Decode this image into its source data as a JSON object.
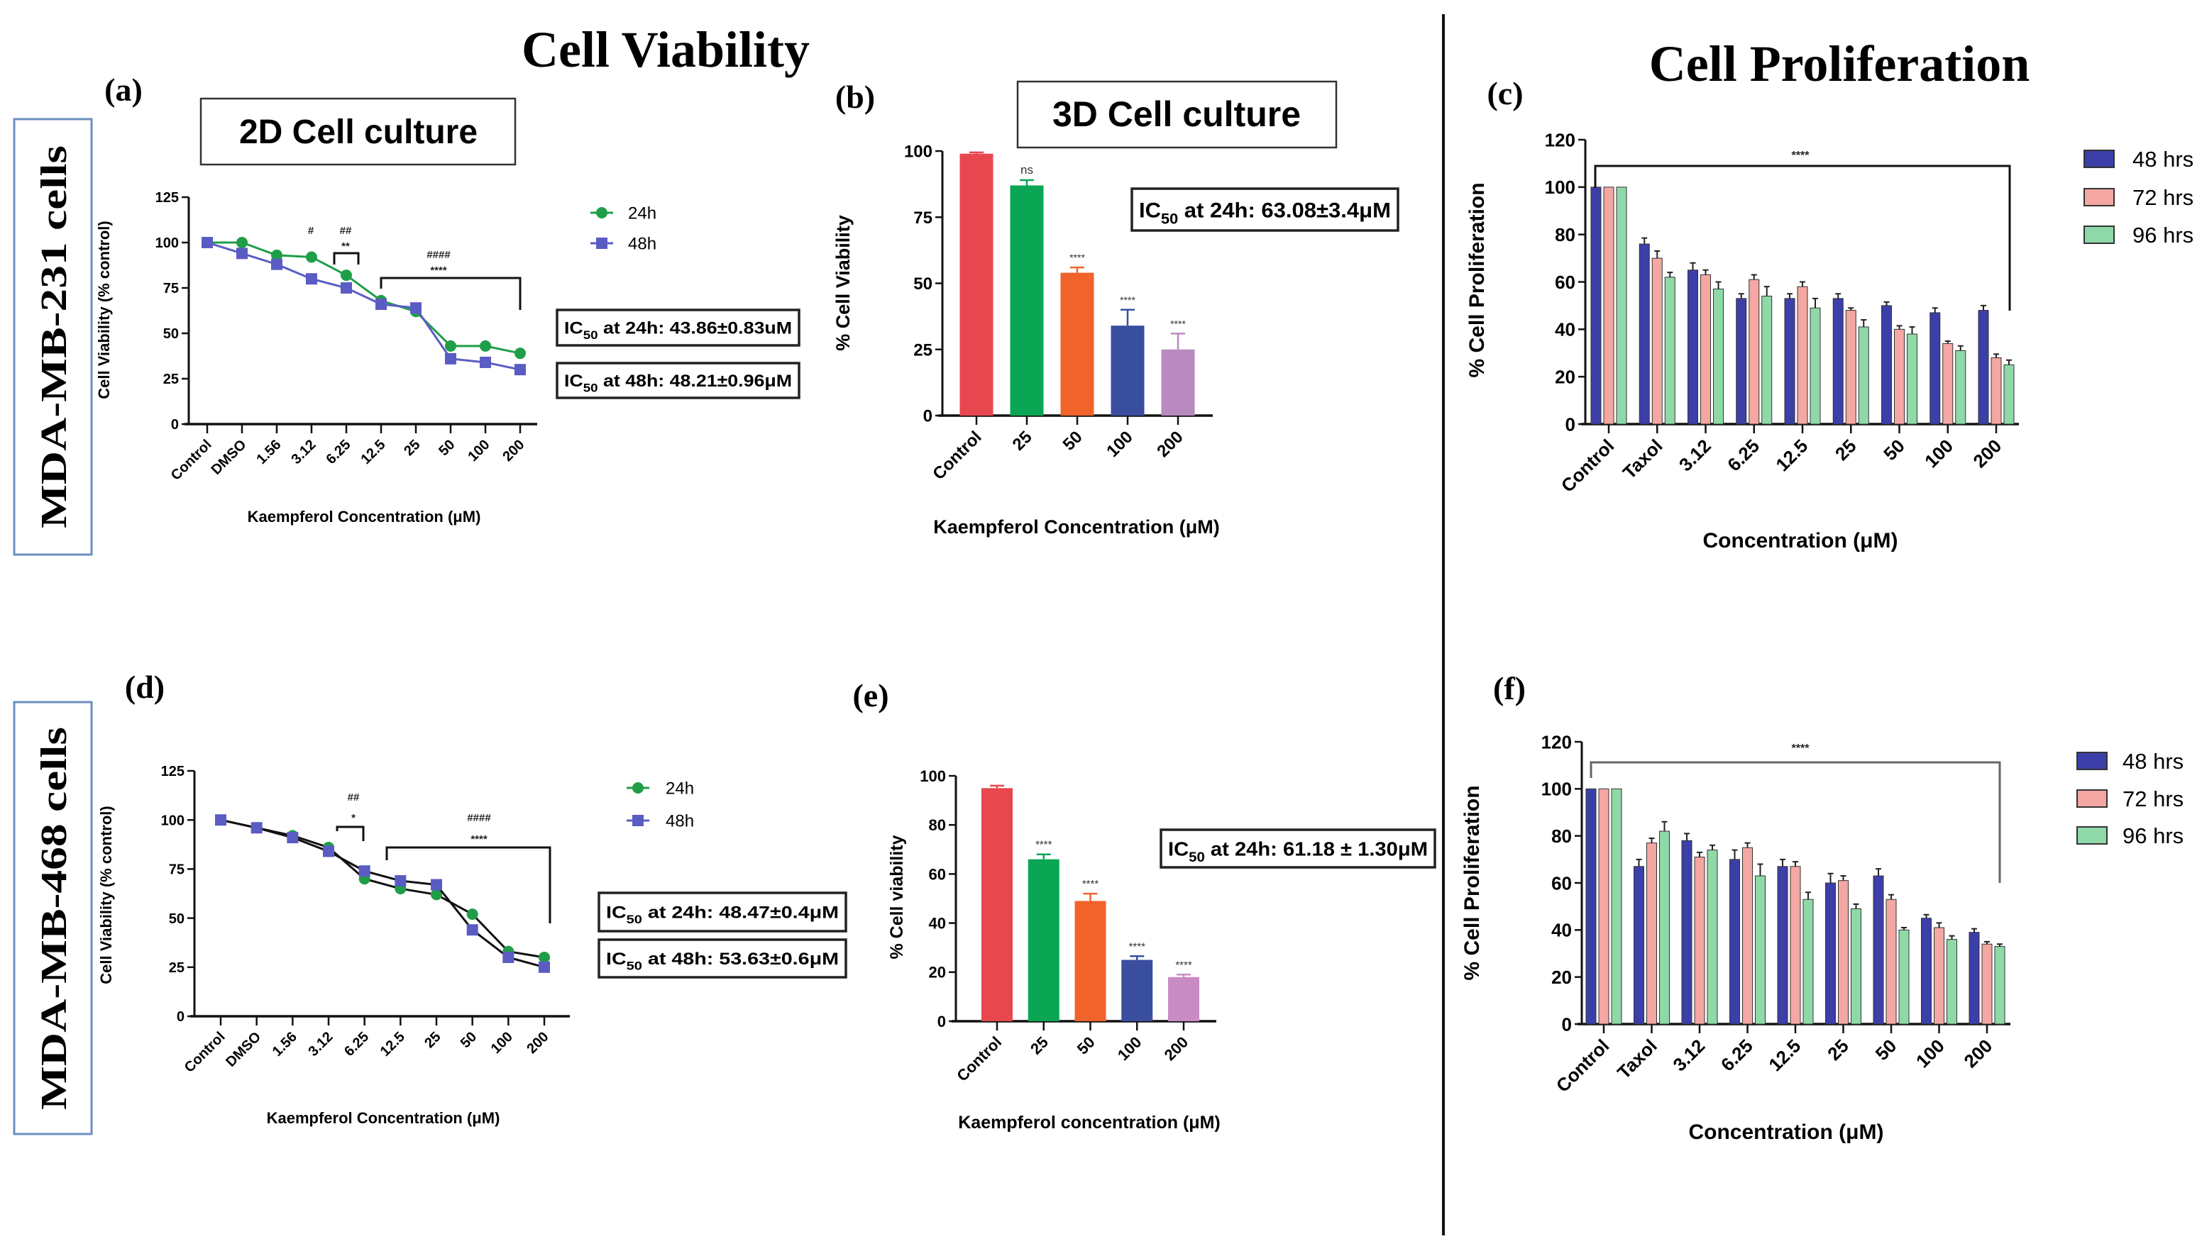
{
  "titles": {
    "viability": "Cell Viability",
    "proliferation": "Cell Proliferation"
  },
  "row_labels": [
    "MDA-MB-231 cells",
    "MDA-MB-468 cells"
  ],
  "culture_labels": {
    "two_d": "2D Cell culture",
    "three_d": "3D Cell culture"
  },
  "colors": {
    "line_24h": "#1f9e47",
    "line_48h": "#5a5cc4",
    "divider": "#111111",
    "row_box": "#6b8fbf"
  },
  "chart_data": [
    {
      "panel": "(a)",
      "type": "line",
      "categories": [
        "Control",
        "DMSO",
        "1.56",
        "3.12",
        "6.25",
        "12.5",
        "25",
        "50",
        "100",
        "200"
      ],
      "series": [
        {
          "name": "24h",
          "values": [
            100,
            100,
            93,
            92,
            82,
            68,
            62,
            43,
            43,
            39
          ],
          "color": "#1f9e47",
          "marker": "circle"
        },
        {
          "name": "48h",
          "values": [
            100,
            94,
            88,
            80,
            75,
            66,
            64,
            36,
            34,
            30
          ],
          "color": "#5a5cc4",
          "marker": "square"
        }
      ],
      "ylim": [
        0,
        125
      ],
      "yticks": [
        0,
        25,
        50,
        75,
        100,
        125
      ],
      "ylabel": "Cell Viability (% control)",
      "xlabel": "Kaempferol Concentration (μM)",
      "ic50": [
        {
          "prefix": "IC",
          "sub": "50",
          "text": " at 24h: 43.86±0.83uM"
        },
        {
          "prefix": "IC",
          "sub": "50",
          "text": " at 48h: 48.21±0.96μM"
        }
      ],
      "annotations": [
        "#",
        "##",
        "**",
        "####",
        "****"
      ],
      "legend": "right"
    },
    {
      "panel": "(b)",
      "type": "bar",
      "categories": [
        "Control",
        "25",
        "50",
        "100",
        "200"
      ],
      "values": [
        99,
        87,
        54,
        34,
        25
      ],
      "errors": [
        0.5,
        2,
        2,
        6,
        6
      ],
      "colors": [
        "#e8474f",
        "#0aa653",
        "#f0632a",
        "#3a4ea0",
        "#b98ac0"
      ],
      "ylim": [
        0,
        100
      ],
      "yticks": [
        0,
        25,
        50,
        75,
        100
      ],
      "ylabel": "% Cell Viability",
      "xlabel": "Kaempferol Concentration (μM)",
      "ic50": [
        {
          "prefix": "IC",
          "sub": "50",
          "text": " at 24h: 63.08±3.4μM"
        }
      ],
      "annotations": [
        "ns",
        "****",
        "****",
        "****"
      ]
    },
    {
      "panel": "(c)",
      "type": "grouped_bar",
      "categories": [
        "Control",
        "Taxol",
        "3.12",
        "6.25",
        "12.5",
        "25",
        "50",
        "100",
        "200"
      ],
      "series": [
        {
          "name": "48 hrs",
          "values": [
            100,
            76,
            65,
            53,
            53,
            53,
            50,
            47,
            48
          ],
          "errors": [
            0,
            2.5,
            3,
            2,
            2,
            2,
            1.5,
            2,
            2
          ],
          "color": "#3c3fa8"
        },
        {
          "name": "72 hrs",
          "values": [
            100,
            70,
            63,
            61,
            58,
            48,
            40,
            34,
            28
          ],
          "errors": [
            0,
            3,
            2,
            2,
            2,
            1,
            1.5,
            1,
            1.5
          ],
          "color": "#f4a7a3"
        },
        {
          "name": "96 hrs",
          "values": [
            100,
            62,
            57,
            54,
            49,
            41,
            38,
            31,
            25
          ],
          "errors": [
            0,
            2,
            3,
            4,
            4,
            3,
            3,
            2,
            2
          ],
          "color": "#8fd9a8"
        }
      ],
      "ylim": [
        0,
        120
      ],
      "yticks": [
        0,
        20,
        40,
        60,
        80,
        100,
        120
      ],
      "ylabel": "% Cell Proliferation",
      "xlabel": "Concentration (μM)",
      "annotations": [
        "****"
      ],
      "legend": "right"
    },
    {
      "panel": "(d)",
      "type": "line",
      "categories": [
        "Control",
        "DMSO",
        "1.56",
        "3.12",
        "6.25",
        "12.5",
        "25",
        "50",
        "100",
        "200"
      ],
      "series": [
        {
          "name": "24h",
          "values": [
            100,
            96,
            92,
            86,
            70,
            65,
            62,
            52,
            33,
            30
          ],
          "color": "#1f9e47",
          "marker": "circle"
        },
        {
          "name": "48h",
          "values": [
            100,
            96,
            91,
            84,
            74,
            69,
            67,
            44,
            30,
            25
          ],
          "color": "#5a5cc4",
          "marker": "square"
        }
      ],
      "ylim": [
        0,
        125
      ],
      "yticks": [
        0,
        25,
        50,
        75,
        100,
        125
      ],
      "ylabel": "Cell Viability (% control)",
      "xlabel": "Kaempferol Concentration (μM)",
      "ic50": [
        {
          "prefix": "IC",
          "sub": "50",
          "text": " at 24h: 48.47±0.4μM"
        },
        {
          "prefix": "IC",
          "sub": "50",
          "text": " at 48h: 53.63±0.6μM"
        }
      ],
      "annotations": [
        "##",
        "*",
        "####",
        "****"
      ],
      "legend": "right"
    },
    {
      "panel": "(e)",
      "type": "bar",
      "categories": [
        "Control",
        "25",
        "50",
        "100",
        "200"
      ],
      "values": [
        95,
        66,
        49,
        25,
        18
      ],
      "errors": [
        1,
        2,
        3,
        1.5,
        1
      ],
      "colors": [
        "#e8474f",
        "#0aa653",
        "#f0632a",
        "#3a4ea0",
        "#c98bc4"
      ],
      "ylim": [
        0,
        100
      ],
      "yticks": [
        0,
        20,
        40,
        60,
        80,
        100
      ],
      "ylabel": "% Cell viability",
      "xlabel": "Kaempferol concentration (μM)",
      "ic50": [
        {
          "prefix": "IC",
          "sub": "50",
          "text": " at 24h: 61.18 ± 1.30μM"
        }
      ],
      "annotations": [
        "****",
        "****",
        "****",
        "****"
      ]
    },
    {
      "panel": "(f)",
      "type": "grouped_bar",
      "categories": [
        "Control",
        "Taxol",
        "3.12",
        "6.25",
        "12.5",
        "25",
        "50",
        "100",
        "200"
      ],
      "series": [
        {
          "name": "48 hrs",
          "values": [
            100,
            67,
            78,
            70,
            67,
            60,
            63,
            45,
            39
          ],
          "errors": [
            0,
            3,
            3,
            4,
            3,
            4,
            3,
            1.5,
            1.5
          ],
          "color": "#3c3fa8"
        },
        {
          "name": "72 hrs",
          "values": [
            100,
            77,
            71,
            75,
            67,
            61,
            53,
            41,
            34
          ],
          "errors": [
            0,
            2,
            2,
            2,
            2,
            2,
            2,
            2,
            1
          ],
          "color": "#f4a7a3"
        },
        {
          "name": "96 hrs",
          "values": [
            100,
            82,
            74,
            63,
            53,
            49,
            40,
            36,
            33
          ],
          "errors": [
            0,
            4,
            2,
            5,
            3,
            2,
            1,
            1.5,
            1
          ],
          "color": "#8fd9a8"
        }
      ],
      "ylim": [
        0,
        120
      ],
      "yticks": [
        0,
        20,
        40,
        60,
        80,
        100,
        120
      ],
      "ylabel": "% Cell Proliferation",
      "xlabel": "Concentration (μM)",
      "annotations": [
        "****"
      ],
      "legend": "right"
    }
  ]
}
